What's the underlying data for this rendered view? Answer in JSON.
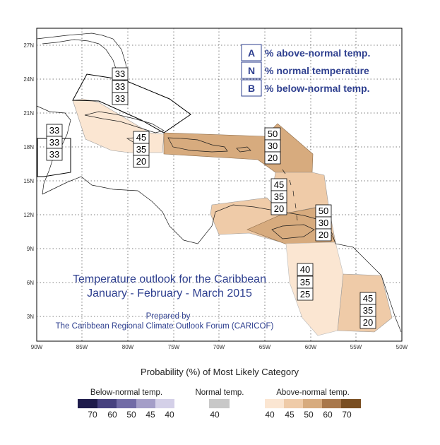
{
  "map": {
    "lat_labels": [
      "27N",
      "24N",
      "21N",
      "18N",
      "15N",
      "12N",
      "9N",
      "6N",
      "3N"
    ],
    "lon_labels": [
      "90W",
      "85W",
      "80W",
      "75W",
      "70W",
      "65W",
      "60W",
      "55W",
      "50W"
    ],
    "regions": [
      {
        "name": "bahamas",
        "above": "33",
        "normal": "33",
        "below": "33"
      },
      {
        "name": "belize",
        "above": "33",
        "normal": "33",
        "below": "33"
      },
      {
        "name": "jamaica",
        "above": "45",
        "normal": "35",
        "below": "20"
      },
      {
        "name": "greater-antilles-east",
        "above": "50",
        "normal": "30",
        "below": "20"
      },
      {
        "name": "lesser-antilles",
        "above": "45",
        "normal": "35",
        "below": "20"
      },
      {
        "name": "southern-caribbean",
        "above": "50",
        "normal": "30",
        "below": "20"
      },
      {
        "name": "guyana-venezuela",
        "above": "40",
        "normal": "35",
        "below": "25"
      },
      {
        "name": "suriname-french-guiana",
        "above": "45",
        "normal": "35",
        "below": "20"
      }
    ]
  },
  "key": {
    "a_letter": "A",
    "a_text": "% above-normal temp.",
    "n_letter": "N",
    "n_text": "% normal temperature",
    "b_letter": "B",
    "b_text": "% below-normal temp."
  },
  "title": {
    "line1": "Temperature outlook for the Caribbean",
    "line2": "January - February - March 2015",
    "prepared": "Prepared by",
    "forum": "The Caribbean Regional Climate Outlook Forum (CARICOF)"
  },
  "colorbar": {
    "caption": "Probability (%) of Most Likely Category",
    "below_label": "Below-normal temp.",
    "below_values": [
      "70",
      "60",
      "50",
      "45",
      "40"
    ],
    "below_colors": [
      "#1e1b4b",
      "#46417f",
      "#716ba6",
      "#a49ec8",
      "#d4d0e8"
    ],
    "normal_label": "Normal temp.",
    "normal_value": "40",
    "normal_color": "#c8c8c8",
    "above_label": "Above-normal temp.",
    "above_values": [
      "40",
      "45",
      "50",
      "60",
      "70"
    ],
    "above_colors": [
      "#fbe6d2",
      "#efcba8",
      "#d7ab7e",
      "#a9784b",
      "#7a4f22"
    ]
  }
}
